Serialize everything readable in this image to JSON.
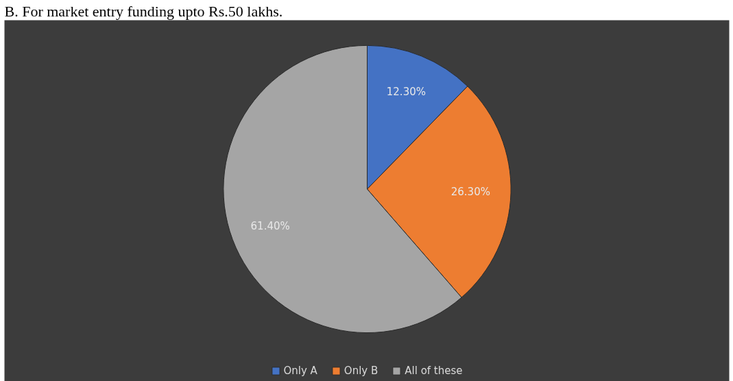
{
  "chart_data": {
    "type": "pie",
    "title": "B. For market entry funding upto Rs.50 lakhs.",
    "categories": [
      "Only A",
      "Only B",
      "All of these"
    ],
    "values": [
      12.3,
      26.3,
      61.4
    ],
    "colors": [
      "#4472c4",
      "#ed7d31",
      "#a5a5a5"
    ],
    "value_labels": [
      "12.30%",
      "26.30%",
      "61.40%"
    ],
    "legend": "bottom"
  }
}
